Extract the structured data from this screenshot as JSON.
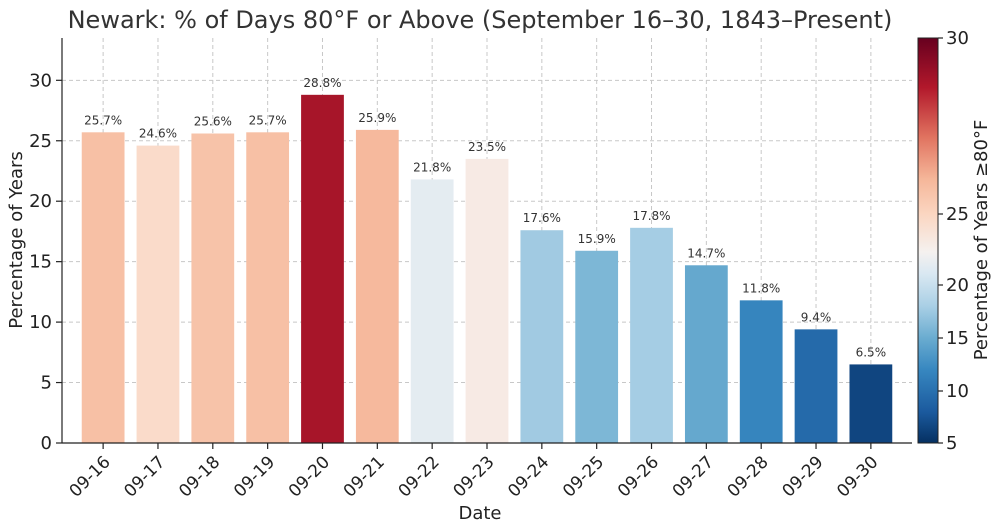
{
  "chart_data": {
    "type": "bar",
    "title": "Newark: % of Days 80°F or Above (September 16–30, 1843–Present)",
    "xlabel": "Date",
    "ylabel": "Percentage of Years",
    "categories": [
      "09-16",
      "09-17",
      "09-18",
      "09-19",
      "09-20",
      "09-21",
      "09-22",
      "09-23",
      "09-24",
      "09-25",
      "09-26",
      "09-27",
      "09-28",
      "09-29",
      "09-30"
    ],
    "values": [
      25.7,
      24.6,
      25.6,
      25.7,
      28.8,
      25.9,
      21.8,
      23.5,
      17.6,
      15.9,
      17.8,
      14.7,
      11.8,
      9.4,
      6.5
    ],
    "data_labels": [
      "25.7%",
      "24.6%",
      "25.6%",
      "25.7%",
      "28.8%",
      "25.9%",
      "21.8%",
      "23.5%",
      "17.6%",
      "15.9%",
      "17.8%",
      "14.7%",
      "11.8%",
      "9.4%",
      "6.5%"
    ],
    "ylim": [
      0,
      33.5
    ],
    "yticks": [
      0,
      5,
      10,
      15,
      20,
      25,
      30
    ],
    "grid": true,
    "colorbar": {
      "label": "Percentage of Years ≥80°F",
      "range": [
        5,
        30
      ],
      "center": 23,
      "ticks": [
        5,
        10,
        15,
        20,
        25,
        30
      ],
      "colormap": "RdBu_r",
      "stops": [
        {
          "v": 5,
          "color": "#053061"
        },
        {
          "v": 8,
          "color": "#1b5a9e"
        },
        {
          "v": 12,
          "color": "#3787c0"
        },
        {
          "v": 15,
          "color": "#6aacd0"
        },
        {
          "v": 18,
          "color": "#a9cfe5"
        },
        {
          "v": 21,
          "color": "#d9e8f2"
        },
        {
          "v": 23,
          "color": "#f5f1ef"
        },
        {
          "v": 25,
          "color": "#fbd6c1"
        },
        {
          "v": 26,
          "color": "#f5b699"
        },
        {
          "v": 27.2,
          "color": "#e0725f"
        },
        {
          "v": 28.6,
          "color": "#b2182b"
        },
        {
          "v": 30,
          "color": "#67001f"
        }
      ]
    }
  }
}
